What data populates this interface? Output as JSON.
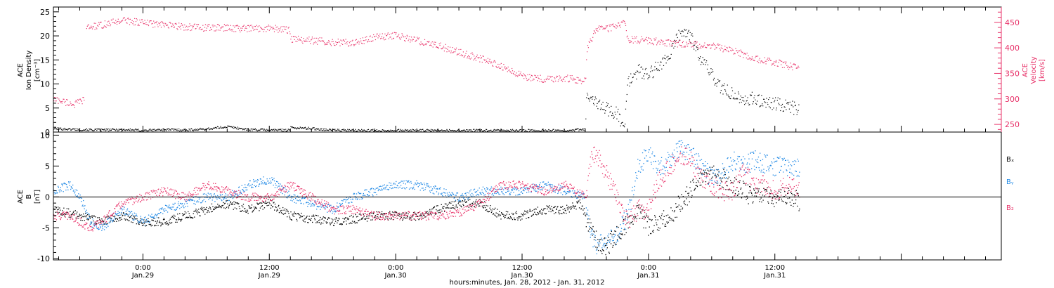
{
  "colors": {
    "black": "#000000",
    "pink": "#e8336a",
    "blue": "#1e88e5"
  },
  "x_axis": {
    "label": "hours:minutes, Jan. 28, 2012 - Jan. 31, 2012",
    "range_hours": [
      -8.5,
      81.5
    ],
    "major_ticks": [
      {
        "hour": 0,
        "time": "0:00",
        "date": "Jan.29"
      },
      {
        "hour": 12,
        "time": "12:00",
        "date": "Jan.29"
      },
      {
        "hour": 24,
        "time": "0:00",
        "date": "Jan.30"
      },
      {
        "hour": 36,
        "time": "12:00",
        "date": "Jan.30"
      },
      {
        "hour": 48,
        "time": "0:00",
        "date": "Jan.31"
      },
      {
        "hour": 60,
        "time": "12:00",
        "date": "Jan.31"
      }
    ]
  },
  "chart_data": [
    {
      "type": "scatter",
      "ylabel_left": [
        "ACE",
        "Ion Density",
        "[cm⁻³]"
      ],
      "ylabel_right": [
        "ACE",
        "Velocity",
        "[km/s]"
      ],
      "ylim_left": [
        0,
        26
      ],
      "ylim_right": [
        235,
        480
      ],
      "left_ticks": [
        0,
        5,
        10,
        15,
        20,
        25
      ],
      "right_ticks": [
        250,
        300,
        350,
        400,
        450
      ],
      "series": [
        {
          "axis": "left",
          "color": "black",
          "x": [
            -8.5,
            -6,
            -4,
            -2,
            0,
            2,
            4,
            6,
            8,
            10,
            12,
            13.9,
            14,
            16,
            18,
            20,
            22,
            24,
            26,
            28,
            30,
            32,
            34,
            36,
            38,
            40,
            42,
            42.1,
            43,
            44,
            45,
            45.7,
            46,
            47,
            48,
            49,
            50,
            51,
            52,
            53,
            54,
            55,
            56,
            57,
            58,
            59,
            60,
            61,
            62,
            62.3
          ],
          "y": [
            0.8,
            0.6,
            0.5,
            0.6,
            0.4,
            0.6,
            0.5,
            0.7,
            1.2,
            0.6,
            0.5,
            0.5,
            1.0,
            0.8,
            0.5,
            0.4,
            0.4,
            0.4,
            0.4,
            0.4,
            0.4,
            0.4,
            0.4,
            0.4,
            0.4,
            0.4,
            0.6,
            8,
            6,
            5,
            4,
            1,
            10,
            13,
            12,
            14,
            16,
            21,
            20,
            15,
            12,
            9,
            8,
            7,
            7,
            6.5,
            6,
            5.5,
            5,
            5
          ]
        },
        {
          "axis": "right",
          "color": "pink",
          "x": [
            -8.5,
            -6.5,
            -5.6,
            -5.5,
            -4,
            -2,
            0,
            2,
            4,
            6,
            8,
            10,
            12,
            13.9,
            14,
            16,
            18,
            20,
            22,
            24,
            26,
            28,
            30,
            32,
            34,
            36,
            38,
            40,
            42,
            42.1,
            43,
            44,
            45,
            45.7,
            46,
            48,
            50,
            52,
            54,
            56,
            58,
            60,
            62,
            62.3
          ],
          "y": [
            300,
            290,
            300,
            440,
            445,
            455,
            450,
            445,
            442,
            440,
            440,
            438,
            440,
            435,
            418,
            415,
            412,
            410,
            422,
            425,
            415,
            405,
            392,
            380,
            365,
            345,
            340,
            342,
            335,
            395,
            440,
            438,
            445,
            448,
            418,
            415,
            410,
            408,
            405,
            395,
            380,
            372,
            362,
            360
          ]
        }
      ]
    },
    {
      "type": "scatter",
      "ylabel_left": [
        "ACE",
        "B",
        "[nT]"
      ],
      "ylim": [
        -10.2,
        10.5
      ],
      "ticks": [
        -10,
        -5,
        0,
        5,
        10
      ],
      "zero_line": true,
      "legend": [
        "Bₓ",
        "Bᵧ",
        "B₂"
      ],
      "series": [
        {
          "name": "Bₓ",
          "color": "black",
          "x": [
            -8.5,
            -6,
            -4,
            -2,
            0,
            2,
            4,
            6,
            8,
            10,
            12,
            14,
            16,
            18,
            20,
            22,
            24,
            26,
            28,
            30,
            32,
            34,
            36,
            38,
            40,
            41.5,
            42.5,
            43,
            44,
            45,
            46,
            47,
            48,
            49,
            50,
            51,
            52,
            53,
            54,
            55,
            56,
            57,
            58,
            59,
            60,
            61,
            62,
            62.3
          ],
          "y": [
            -2,
            -3,
            -4,
            -3,
            -4,
            -4,
            -3,
            -2,
            -1,
            -2,
            -1,
            -3,
            -3.5,
            -4,
            -3.5,
            -3,
            -3,
            -3,
            -2,
            -1,
            -1,
            -3,
            -3,
            -2,
            -2,
            -1,
            -5,
            -7,
            -8,
            -6,
            -4,
            -2,
            -5,
            -4,
            -3,
            -1,
            1,
            3,
            4,
            3,
            2,
            1,
            0,
            1,
            0,
            0,
            0,
            -1
          ]
        },
        {
          "name": "Bᵧ",
          "color": "blue",
          "x": [
            -8.5,
            -7,
            -6,
            -5,
            -4,
            -2,
            0,
            2,
            4,
            6,
            8,
            10,
            12,
            14,
            16,
            18,
            20,
            22,
            24,
            26,
            28,
            30,
            32,
            34,
            36,
            38,
            40,
            42,
            42.5,
            43,
            44,
            45,
            46,
            47,
            48,
            49,
            50,
            51,
            52,
            53,
            54,
            55,
            56,
            57,
            58,
            59,
            60,
            61,
            62,
            62.3
          ],
          "y": [
            1,
            2,
            0,
            -4,
            -5,
            -2,
            -4,
            -2,
            -1,
            0,
            0,
            2,
            3,
            0,
            -1,
            -2,
            0,
            1,
            2,
            2,
            1,
            0,
            1,
            1,
            1,
            2,
            1,
            0,
            -6,
            -8,
            -7,
            -6,
            -3,
            5,
            7,
            5,
            6,
            8,
            7,
            5,
            3,
            4,
            6,
            5,
            6,
            5.5,
            5,
            5,
            5,
            5
          ]
        },
        {
          "name": "B₂",
          "color": "pink",
          "x": [
            -8.5,
            -7,
            -6,
            -5,
            -4,
            -2,
            0,
            2,
            4,
            6,
            8,
            10,
            12,
            14,
            16,
            18,
            20,
            22,
            24,
            26,
            28,
            30,
            32,
            34,
            36,
            38,
            40,
            42,
            42.5,
            43,
            44,
            45,
            46,
            47,
            48,
            49,
            50,
            51,
            52,
            53,
            54,
            55,
            56,
            57,
            58,
            59,
            60,
            61,
            62,
            62.3
          ],
          "y": [
            -3,
            -3,
            -4,
            -5,
            -4,
            -1,
            0,
            1,
            0,
            2,
            1,
            0,
            0,
            2,
            0,
            -2,
            -2,
            -3,
            -3,
            -3,
            -3,
            -2.5,
            -1,
            2,
            2,
            1,
            2,
            0,
            6,
            7,
            4,
            0,
            -4,
            -2,
            -2,
            3,
            5,
            7,
            6,
            3,
            2,
            1,
            1,
            4,
            2,
            2,
            1,
            2,
            1.5,
            1
          ]
        }
      ]
    }
  ]
}
